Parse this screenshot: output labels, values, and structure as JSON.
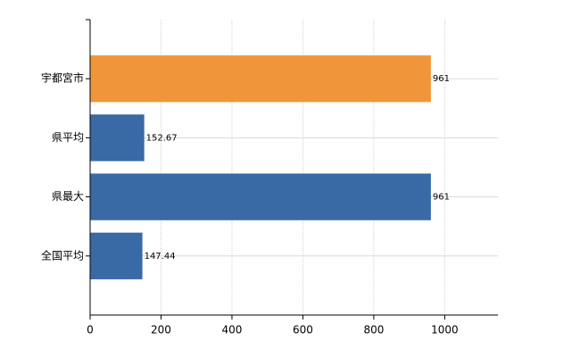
{
  "chart_data": {
    "type": "bar",
    "orientation": "horizontal",
    "categories": [
      "宇都宮市",
      "県平均",
      "県最大",
      "全国平均"
    ],
    "values": [
      961,
      152.67,
      961,
      147.44
    ],
    "colors": [
      "#f0963a",
      "#3a6aa6",
      "#3a6aa6",
      "#3a6aa6"
    ],
    "xlim": [
      0,
      1150
    ],
    "xticks": [
      0,
      200,
      400,
      600,
      800,
      1000
    ],
    "grid": true
  }
}
